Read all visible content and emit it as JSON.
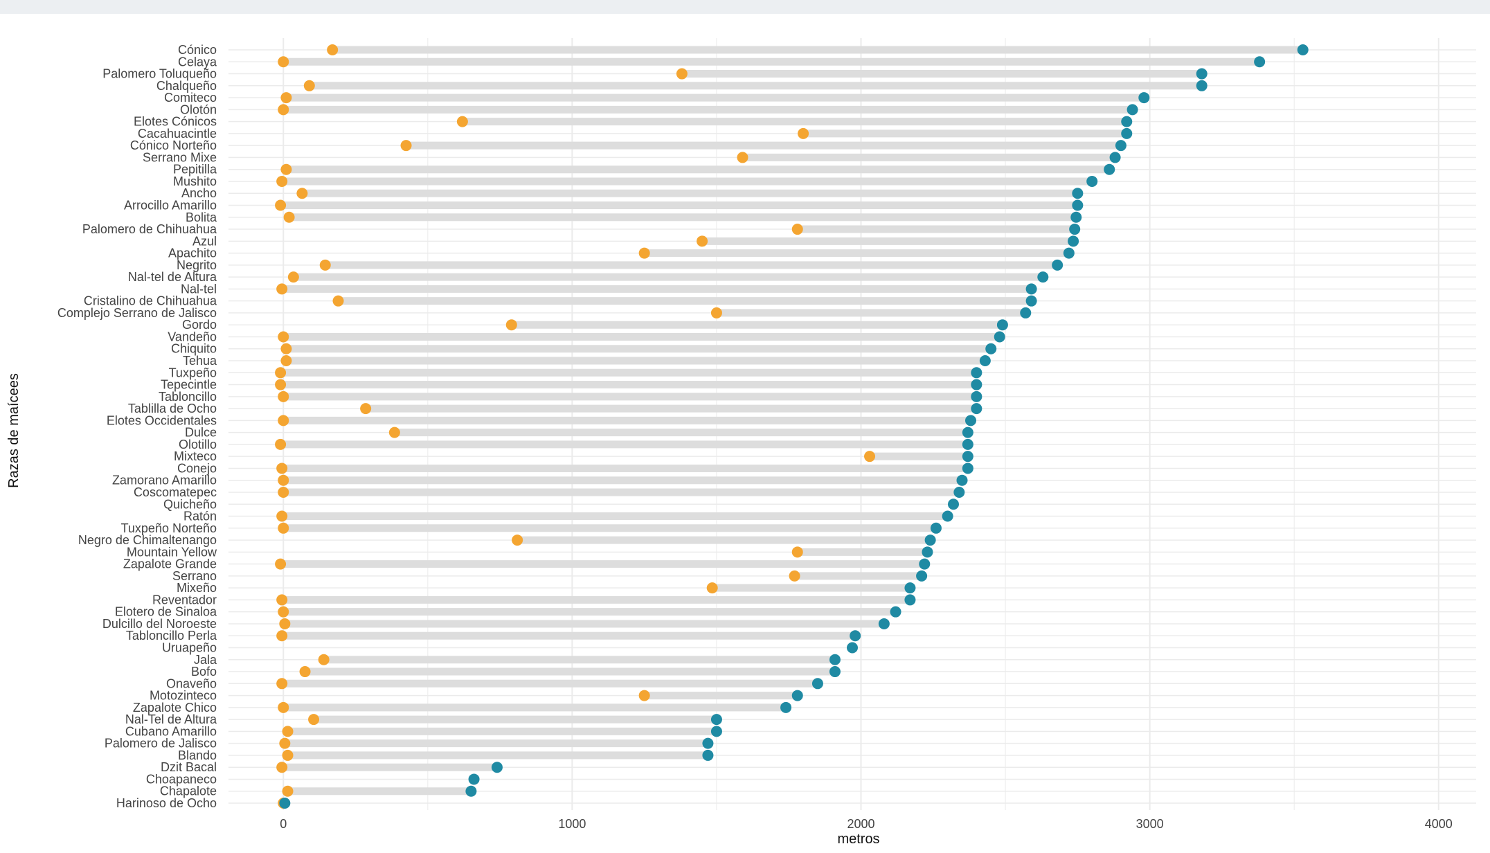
{
  "colors": {
    "min_point": "#f4a531",
    "max_point": "#1f8aa3",
    "range_bar": "#dddddd",
    "grid": "#ebebeb",
    "top_band": "#eceff2"
  },
  "chart_data": {
    "type": "dumbbell",
    "xlabel": "metros",
    "ylabel": "Razas de maícees",
    "xlim": [
      -190,
      4130
    ],
    "xticks": [
      0,
      1000,
      2000,
      3000,
      4000
    ],
    "grid": true,
    "legend": "none",
    "series_names": [
      "min",
      "max"
    ],
    "categories": [
      "Cónico",
      "Celaya",
      "Palomero Toluqueño",
      "Chalqueño",
      "Comiteco",
      "Olotón",
      "Elotes Cónicos",
      "Cacahuacintle",
      "Cónico Norteño",
      "Serrano Mixe",
      "Pepitilla",
      "Mushito",
      "Ancho",
      "Arrocillo Amarillo",
      "Bolita",
      "Palomero de Chihuahua",
      "Azul",
      "Apachito",
      "Negrito",
      "Nal-tel de Altura",
      "Nal-tel",
      "Cristalino de Chihuahua",
      "Complejo Serrano de Jalisco",
      "Gordo",
      "Vandeño",
      "Chiquito",
      "Tehua",
      "Tuxpeño",
      "Tepecintle",
      "Tabloncillo",
      "Tablilla de Ocho",
      "Elotes Occidentales",
      "Dulce",
      "Olotillo",
      "Mixteco",
      "Conejo",
      "Zamorano Amarillo",
      "Coscomatepec",
      "Quicheño",
      "Ratón",
      "Tuxpeño Norteño",
      "Negro de Chimaltenango",
      "Mountain Yellow",
      "Zapalote Grande",
      "Serrano",
      "Mixeño",
      "Reventador",
      "Elotero de Sinaloa",
      "Dulcillo del Noroeste",
      "Tabloncillo Perla",
      "Uruapeño",
      "Jala",
      "Bofo",
      "Onaveño",
      "Motozinteco",
      "Zapalote Chico",
      "Nal-Tel de Altura",
      "Cubano Amarillo",
      "Palomero de Jalisco",
      "Blando",
      "Dzit Bacal",
      "Choapaneco",
      "Chapalote",
      "Harinoso de Ocho"
    ],
    "min": [
      170,
      0,
      1380,
      90,
      10,
      0,
      620,
      1800,
      425,
      1590,
      10,
      -5,
      65,
      -10,
      20,
      1780,
      1450,
      1250,
      145,
      35,
      -5,
      190,
      1500,
      790,
      0,
      10,
      10,
      -10,
      -10,
      0,
      285,
      0,
      385,
      -10,
      2030,
      -5,
      0,
      0,
      null,
      -5,
      0,
      810,
      1780,
      -10,
      1770,
      1485,
      -5,
      0,
      5,
      -5,
      null,
      140,
      75,
      -5,
      1250,
      0,
      105,
      15,
      5,
      15,
      -5,
      null,
      15,
      0
    ],
    "max": [
      3530,
      3380,
      3180,
      3180,
      2980,
      2940,
      2920,
      2920,
      2900,
      2880,
      2860,
      2800,
      2750,
      2750,
      2745,
      2740,
      2735,
      2720,
      2680,
      2630,
      2590,
      2590,
      2570,
      2490,
      2480,
      2450,
      2430,
      2400,
      2400,
      2400,
      2400,
      2380,
      2370,
      2370,
      2370,
      2370,
      2350,
      2340,
      2320,
      2300,
      2260,
      2240,
      2230,
      2220,
      2210,
      2170,
      2170,
      2120,
      2080,
      1980,
      1970,
      1910,
      1910,
      1850,
      1780,
      1740,
      1500,
      1500,
      1470,
      1470,
      740,
      660,
      650,
      5
    ]
  }
}
